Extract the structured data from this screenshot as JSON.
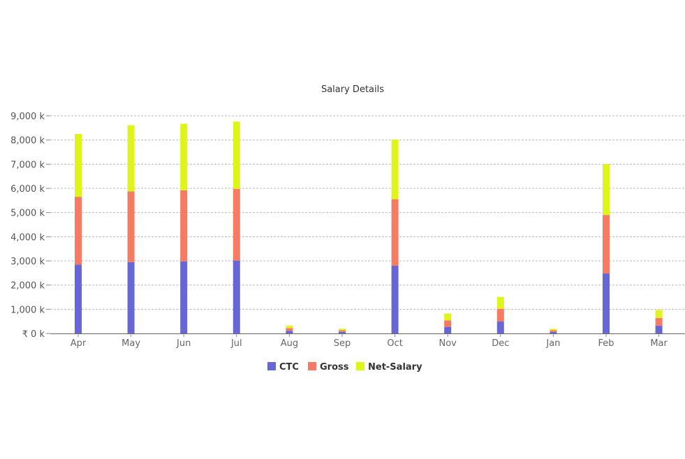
{
  "chart_data": {
    "type": "bar",
    "stacked": true,
    "title": "Salary Details",
    "categories": [
      "Apr",
      "May",
      "Jun",
      "Jul",
      "Aug",
      "Sep",
      "Oct",
      "Nov",
      "Dec",
      "Jan",
      "Feb",
      "Mar"
    ],
    "series": [
      {
        "name": "CTC",
        "color": "#6666d6",
        "values": [
          2850,
          2950,
          2980,
          3010,
          110,
          65,
          2800,
          270,
          490,
          65,
          2480,
          320
        ]
      },
      {
        "name": "Gross",
        "color": "#f77b62",
        "values": [
          2800,
          2920,
          2940,
          2970,
          110,
          65,
          2750,
          270,
          530,
          65,
          2420,
          320
        ]
      },
      {
        "name": "Net-Salary",
        "color": "#dff51a",
        "values": [
          2600,
          2740,
          2750,
          2780,
          100,
          65,
          2470,
          280,
          490,
          60,
          2100,
          330
        ]
      }
    ],
    "y_ticks": [
      "₹ 0 k",
      "1,000 k",
      "2,000 k",
      "3,000 k",
      "4,000 k",
      "5,000 k",
      "6,000 k",
      "7,000 k",
      "8,000 k",
      "9,000 k"
    ],
    "ylim": [
      0,
      9000
    ],
    "grid": true,
    "legend_position": "bottom-center"
  }
}
